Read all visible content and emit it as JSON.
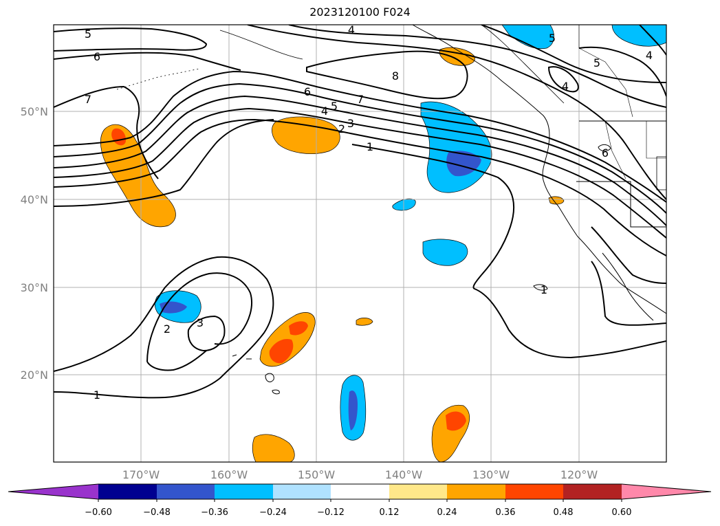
{
  "title": "2023120100 F024",
  "map": {
    "lat_labels": [
      "50°N",
      "40°N",
      "30°N",
      "20°N"
    ],
    "lon_labels": [
      "170°W",
      "160°W",
      "150°W",
      "140°W",
      "130°W",
      "120°W"
    ],
    "grid": true,
    "contour_color": "#000000",
    "contour_labels": [
      "5",
      "6",
      "7",
      "4",
      "8",
      "6",
      "7",
      "5",
      "4",
      "3",
      "2",
      "1",
      "5",
      "5",
      "4",
      "4",
      "6",
      "1",
      "2",
      "3",
      "1"
    ]
  },
  "colorbar": {
    "ticks": [
      "−0.60",
      "−0.48",
      "−0.36",
      "−0.24",
      "−0.12",
      "0.12",
      "0.24",
      "0.36",
      "0.48",
      "0.60"
    ],
    "colors": [
      "#9933cc",
      "#000090",
      "#3355cc",
      "#00bfff",
      "#b0e2ff",
      "#ffffff",
      "#ffe88a",
      "#ffa500",
      "#ff4500",
      "#b22222",
      "#ff88aa"
    ]
  }
}
